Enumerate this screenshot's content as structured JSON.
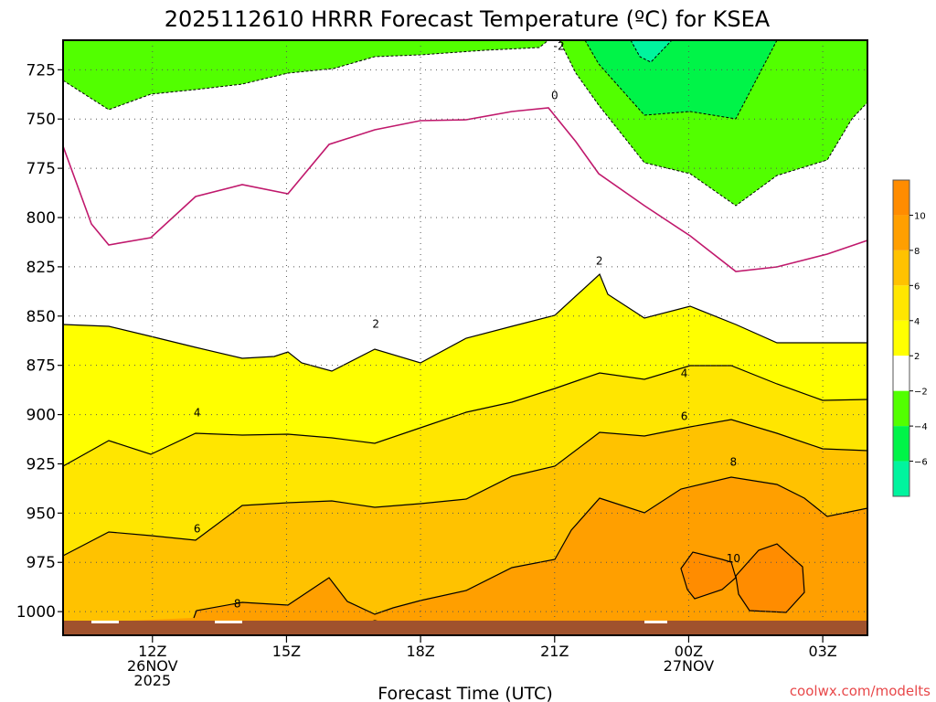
{
  "chart_data": {
    "type": "contour",
    "title": "2025112610 HRRR Forecast Temperature (ºC) for KSEA",
    "xlabel": "Forecast Time (UTC)",
    "ylabel": "",
    "x_ticks": [
      {
        "label": "12Z",
        "sub": [
          "26NOV",
          "2025"
        ]
      },
      {
        "label": "15Z",
        "sub": []
      },
      {
        "label": "18Z",
        "sub": []
      },
      {
        "label": "21Z",
        "sub": []
      },
      {
        "label": "00Z",
        "sub": [
          "27NOV"
        ]
      },
      {
        "label": "03Z",
        "sub": []
      }
    ],
    "x_hours": [
      12,
      15,
      18,
      21,
      24,
      27
    ],
    "xlim_hours": [
      10,
      28
    ],
    "y_ticks": [
      725,
      750,
      775,
      800,
      825,
      850,
      875,
      900,
      925,
      950,
      975,
      1000
    ],
    "ylim_hpa": [
      1012,
      710
    ],
    "y_unit": "hPa",
    "fill_levels": [
      {
        "range": [
          -8,
          -6
        ],
        "color": "#00f49e"
      },
      {
        "range": [
          -6,
          -4
        ],
        "color": "#00f448"
      },
      {
        "range": [
          -4,
          -2
        ],
        "color": "#52ff00"
      },
      {
        "range": [
          -2,
          2
        ],
        "color": "#ffffff"
      },
      {
        "range": [
          2,
          4
        ],
        "color": "#ffff00"
      },
      {
        "range": [
          4,
          6
        ],
        "color": "#ffe600"
      },
      {
        "range": [
          6,
          8
        ],
        "color": "#ffc200"
      },
      {
        "range": [
          8,
          10
        ],
        "color": "#ff9f00"
      },
      {
        "range": [
          10,
          12
        ],
        "color": "#ff8c00"
      }
    ],
    "colorbar_ticks": [
      "10",
      "8",
      "6",
      "4",
      "2",
      "−2",
      "−4",
      "−6"
    ],
    "contour_labels": [
      {
        "text": "-2",
        "hour": 21.1,
        "hpa": 713
      },
      {
        "text": "0",
        "hour": 21.0,
        "hpa": 738
      },
      {
        "text": "2",
        "hour": 22.0,
        "hpa": 822
      },
      {
        "text": "2",
        "hour": 17.0,
        "hpa": 854
      },
      {
        "text": "4",
        "hour": 23.9,
        "hpa": 879
      },
      {
        "text": "4",
        "hour": 13.0,
        "hpa": 899
      },
      {
        "text": "6",
        "hour": 23.9,
        "hpa": 901
      },
      {
        "text": "6",
        "hour": 13.0,
        "hpa": 958
      },
      {
        "text": "8",
        "hour": 25.0,
        "hpa": 924
      },
      {
        "text": "8",
        "hour": 13.9,
        "hpa": 996
      },
      {
        "text": "10",
        "hour": 25.0,
        "hpa": 973
      }
    ],
    "surface_color": "#a0522d",
    "grid": true
  },
  "credit": "coolwx.com/modelts"
}
